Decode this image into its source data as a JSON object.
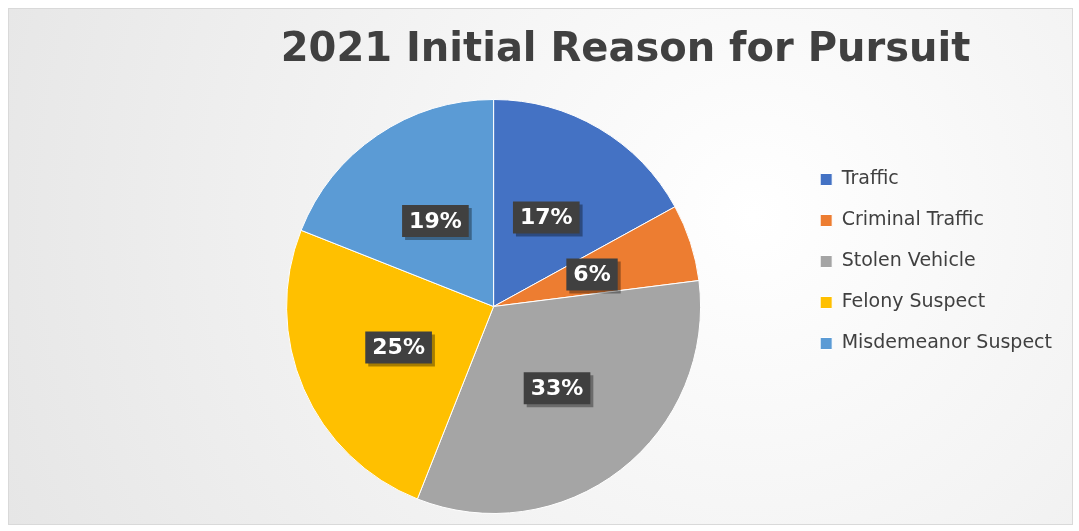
{
  "chart_data": {
    "type": "pie",
    "title": "2021 Initial Reason for Pursuit",
    "categories": [
      "Traffic",
      "Criminal Traffic",
      "Stolen Vehicle",
      "Felony Suspect",
      "Misdemeanor Suspect"
    ],
    "values": [
      17,
      6,
      33,
      25,
      19
    ],
    "value_labels": [
      "17%",
      "6%",
      "33%",
      "25%",
      "19%"
    ],
    "colors": [
      "#4472c4",
      "#ed7d31",
      "#a5a5a5",
      "#ffc000",
      "#5b9bd5"
    ],
    "legend": "right"
  }
}
